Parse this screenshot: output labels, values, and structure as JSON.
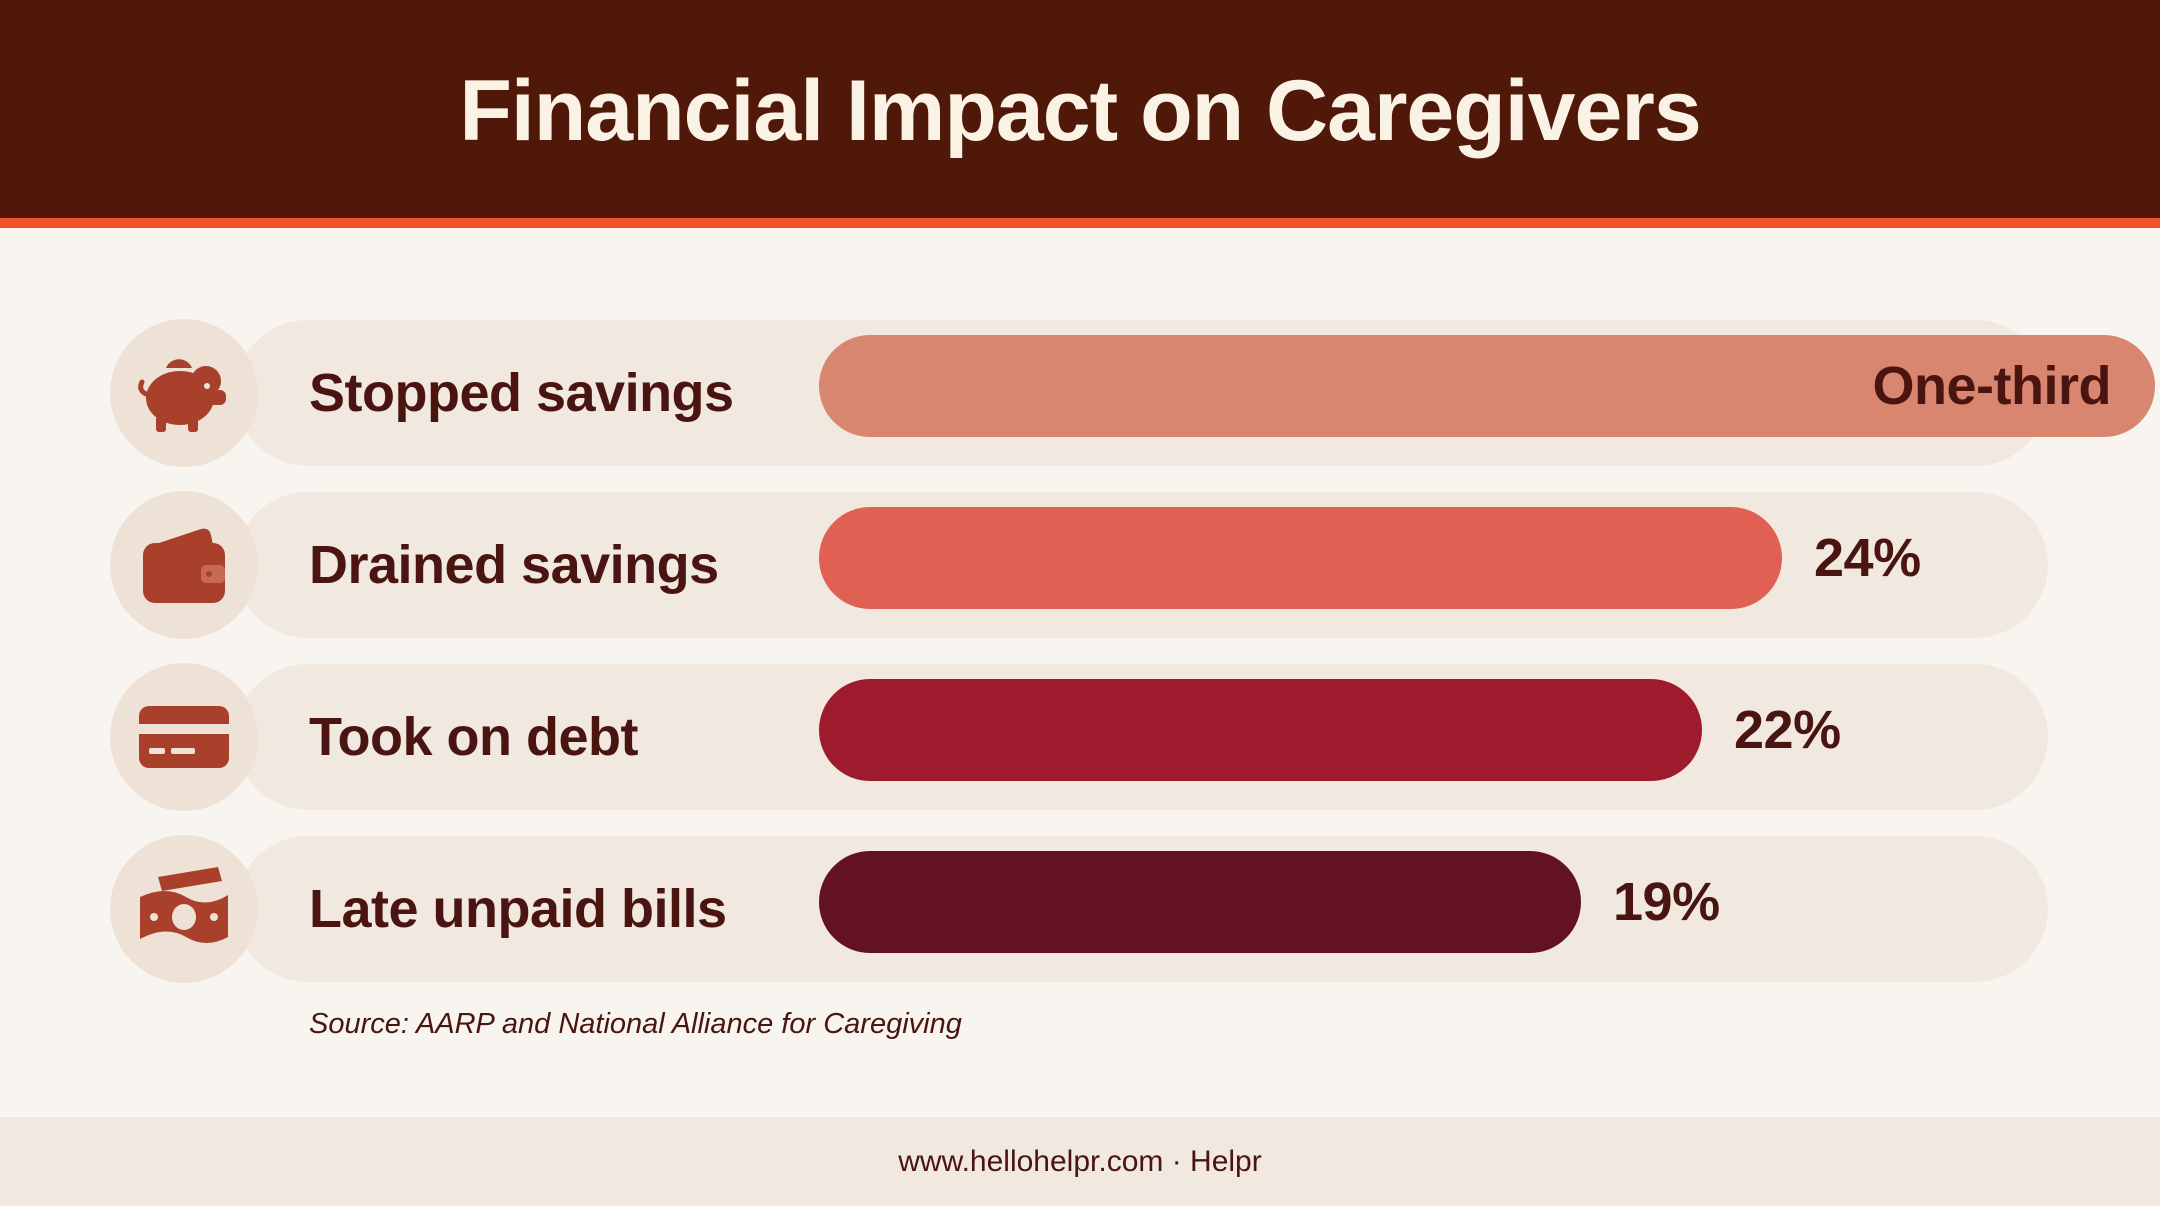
{
  "title": "Financial Impact on Caregivers",
  "source": "Source: AARP and National Alliance for Caregiving",
  "footer": "www.hellohelpr.com · Helpr",
  "chart_data": {
    "type": "bar",
    "orientation": "horizontal",
    "title": "Financial Impact on Caregivers",
    "categories": [
      "Stopped savings",
      "Drained savings",
      "Took on debt",
      "Late unpaid bills"
    ],
    "values": [
      33.3,
      24,
      22,
      19
    ],
    "value_labels": [
      "One-third",
      "24%",
      "22%",
      "19%"
    ],
    "icons": [
      "piggy-bank-icon",
      "wallet-icon",
      "credit-card-icon",
      "cash-icon"
    ],
    "colors": [
      "#d8866f",
      "#e06153",
      "#9e1b2e",
      "#631222"
    ],
    "xlim": [
      0,
      33.3
    ],
    "grid": false,
    "legend": "none"
  },
  "colors": {
    "header": "#501809",
    "accent": "#f0522c",
    "text": "#4a1510",
    "background": "#f8f5f1"
  }
}
